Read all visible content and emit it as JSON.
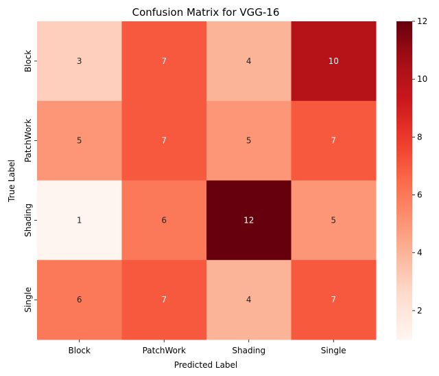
{
  "chart_data": {
    "type": "heatmap",
    "title": "Confusion Matrix for VGG-16",
    "xlabel": "Predicted Label",
    "ylabel": "True Label",
    "x_categories": [
      "Block",
      "PatchWork",
      "Shading",
      "Single"
    ],
    "y_categories": [
      "Block",
      "PatchWork",
      "Shading",
      "Single"
    ],
    "values": [
      [
        3,
        7,
        4,
        10
      ],
      [
        5,
        7,
        5,
        7
      ],
      [
        1,
        6,
        12,
        5
      ],
      [
        6,
        7,
        4,
        7
      ]
    ],
    "colorscale": "Reds",
    "vmin": 1,
    "vmax": 12,
    "colorbar_ticks": [
      2,
      4,
      6,
      8,
      10,
      12
    ],
    "annotations": true
  }
}
